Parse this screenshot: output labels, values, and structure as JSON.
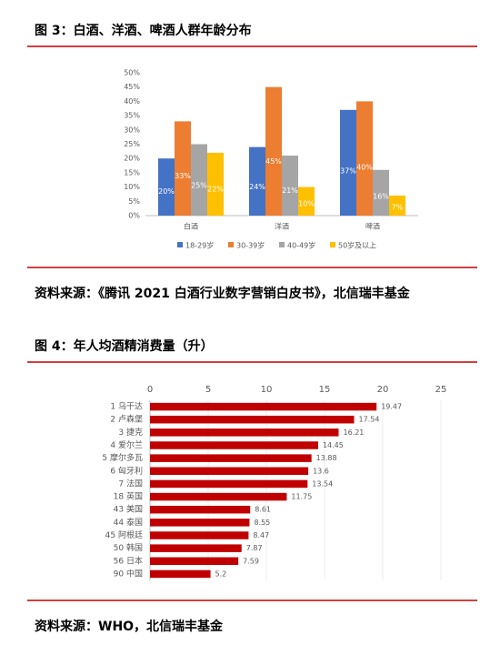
{
  "chart_data": [
    {
      "type": "grouped_bar",
      "title": "图 3：白酒、洋酒、啤酒人群年龄分布",
      "categories": [
        "白酒",
        "洋酒",
        "啤酒"
      ],
      "series": [
        {
          "name": "18-29岁",
          "color": "#4472c4",
          "values": [
            20,
            24,
            37
          ],
          "value_labels": [
            "20%",
            "24%",
            "37%"
          ]
        },
        {
          "name": "30-39岁",
          "color": "#ed7d31",
          "values": [
            33,
            45,
            40
          ],
          "value_labels": [
            "33%",
            "45%",
            "40%"
          ]
        },
        {
          "name": "40-49岁",
          "color": "#a5a5a5",
          "values": [
            25,
            21,
            16
          ],
          "value_labels": [
            "25%",
            "21%",
            "16%"
          ]
        },
        {
          "name": "50岁及以上",
          "color": "#ffc000",
          "values": [
            22,
            10,
            7
          ],
          "value_labels": [
            "22%",
            "10%",
            "7%"
          ]
        }
      ],
      "ylim": [
        0,
        50
      ],
      "yticks": [
        {
          "value": 0,
          "label": "0%"
        },
        {
          "value": 5,
          "label": "5%"
        },
        {
          "value": 10,
          "label": "10%"
        },
        {
          "value": 15,
          "label": "15%"
        },
        {
          "value": 20,
          "label": "20%"
        },
        {
          "value": 25,
          "label": "25%"
        },
        {
          "value": 30,
          "label": "30%"
        },
        {
          "value": 35,
          "label": "35%"
        },
        {
          "value": 40,
          "label": "40%"
        },
        {
          "value": 45,
          "label": "45%"
        },
        {
          "value": 50,
          "label": "50%"
        }
      ],
      "grid": false,
      "legend": "bottom",
      "source": "资料来源：《腾讯 2021 白酒行业数字营销白皮书》，北信瑞丰基金"
    },
    {
      "type": "hbar",
      "title": "图 4：年人均酒精消费量（升）",
      "categories": [
        "1 乌干达",
        "2 卢森堡",
        "3 捷克",
        "4 爱尔兰",
        "5 摩尔多瓦",
        "6 匈牙利",
        "7 法国",
        "18 英国",
        "43 美国",
        "44 泰国",
        "45 阿根廷",
        "50 韩国",
        "56 日本",
        "90 中国"
      ],
      "values": [
        19.47,
        17.54,
        16.21,
        14.45,
        13.88,
        13.6,
        13.54,
        11.75,
        8.61,
        8.55,
        8.47,
        7.87,
        7.59,
        5.2
      ],
      "color": "#c00000",
      "xlim": [
        0,
        25
      ],
      "xticks": [
        0,
        5,
        10,
        15,
        20,
        25
      ],
      "grid": true,
      "source": "资料来源：WHO，北信瑞丰基金"
    }
  ]
}
